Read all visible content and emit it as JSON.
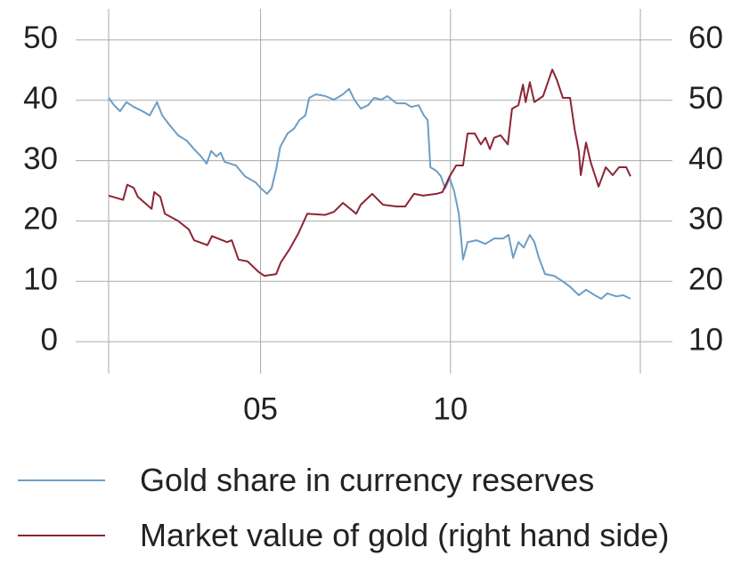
{
  "chart_data": {
    "type": "line",
    "xlim": [
      2001,
      2015
    ],
    "xticks": [
      {
        "value": 2005,
        "label": "05"
      },
      {
        "value": 2010,
        "label": "10"
      }
    ],
    "ylim": [
      -5,
      55
    ],
    "yticks": [
      0,
      10,
      20,
      30,
      40,
      50
    ],
    "y2lim": [
      5,
      65
    ],
    "y2ticks": [
      10,
      20,
      30,
      40,
      50,
      60
    ],
    "grid": true,
    "series": [
      {
        "name": "Gold share in currency reserves",
        "color": "#6d9dc5",
        "x": [
          2001.0,
          2001.14,
          2001.3,
          2001.47,
          2001.66,
          2001.89,
          2002.08,
          2002.27,
          2002.41,
          2002.59,
          2002.83,
          2003.06,
          2003.25,
          2003.42,
          2003.58,
          2003.7,
          2003.84,
          2003.95,
          2004.05,
          2004.35,
          2004.59,
          2004.87,
          2005.01,
          2005.17,
          2005.29,
          2005.41,
          2005.52,
          2005.71,
          2005.88,
          2006.02,
          2006.18,
          2006.28,
          2006.46,
          2006.7,
          2006.93,
          2007.17,
          2007.33,
          2007.47,
          2007.64,
          2007.83,
          2007.99,
          2008.18,
          2008.34,
          2008.58,
          2008.81,
          2008.97,
          2009.16,
          2009.3,
          2009.4,
          2009.47,
          2009.63,
          2009.75,
          2009.86,
          2009.98,
          2010.1,
          2010.22,
          2010.33,
          2010.45,
          2010.69,
          2010.92,
          2011.15,
          2011.39,
          2011.53,
          2011.65,
          2011.79,
          2011.93,
          2012.09,
          2012.21,
          2012.33,
          2012.49,
          2012.73,
          2012.96,
          2013.15,
          2013.38,
          2013.57,
          2013.8,
          2013.97,
          2014.13,
          2014.37,
          2014.55,
          2014.74
        ],
        "values": [
          40.4,
          39.2,
          38.2,
          39.7,
          38.9,
          38.2,
          37.5,
          39.7,
          37.5,
          36,
          34.2,
          33.3,
          31.9,
          30.8,
          29.5,
          31.6,
          30.7,
          31.3,
          29.8,
          29.2,
          27.4,
          26.4,
          25.4,
          24.5,
          25.4,
          28.6,
          32.3,
          34.5,
          35.3,
          36.7,
          37.5,
          40.4,
          41,
          40.7,
          40.1,
          41,
          41.9,
          40.1,
          38.6,
          39.2,
          40.4,
          40.1,
          40.7,
          39.5,
          39.5,
          38.9,
          39.2,
          37.5,
          36.7,
          28.9,
          28.3,
          27.4,
          25.4,
          27.1,
          24.9,
          21.2,
          13.6,
          16.5,
          16.8,
          16.2,
          17.1,
          17.1,
          17.7,
          13.9,
          16.5,
          15.6,
          17.7,
          16.5,
          13.9,
          11.2,
          10.9,
          10,
          9.1,
          7.7,
          8.6,
          7.7,
          7.1,
          8,
          7.5,
          7.7,
          7.1
        ]
      },
      {
        "name": "Market value of gold (right hand side)",
        "color": "#8c2535",
        "axis": "y2",
        "x": [
          2001.0,
          2001.38,
          2001.49,
          2001.66,
          2001.77,
          2002.13,
          2002.2,
          2002.36,
          2002.48,
          2002.83,
          2003.11,
          2003.25,
          2003.6,
          2003.72,
          2004.12,
          2004.24,
          2004.42,
          2004.66,
          2004.94,
          2005.1,
          2005.41,
          2005.53,
          2005.76,
          2006.0,
          2006.23,
          2006.7,
          2006.93,
          2007.17,
          2007.52,
          2007.64,
          2007.94,
          2008.22,
          2008.58,
          2008.81,
          2009.04,
          2009.28,
          2009.63,
          2009.79,
          2009.98,
          2010.15,
          2010.33,
          2010.45,
          2010.64,
          2010.8,
          2010.92,
          2011.04,
          2011.15,
          2011.32,
          2011.51,
          2011.62,
          2011.79,
          2011.91,
          2011.98,
          2012.09,
          2012.21,
          2012.44,
          2012.68,
          2012.8,
          2012.96,
          2013.15,
          2013.27,
          2013.38,
          2013.43,
          2013.57,
          2013.69,
          2013.9,
          2014.09,
          2014.27,
          2014.44,
          2014.63,
          2014.74
        ],
        "values": [
          34.2,
          33.5,
          36,
          35.5,
          34,
          32,
          34.8,
          34,
          31.2,
          30,
          28.6,
          26.8,
          26,
          27.5,
          26.5,
          26.8,
          23.6,
          23.3,
          21.6,
          20.9,
          21.2,
          23.1,
          25.3,
          28,
          31.2,
          31,
          31.5,
          33,
          31.2,
          32.7,
          34.5,
          32.7,
          32.4,
          32.4,
          34.5,
          34.2,
          34.5,
          34.8,
          37.4,
          39.2,
          39.2,
          44.5,
          44.5,
          42.7,
          43.8,
          41.9,
          43.8,
          44.2,
          42.7,
          48.6,
          49.2,
          52.6,
          49.7,
          53,
          49.7,
          50.7,
          55.1,
          53.4,
          50.4,
          50.4,
          45.2,
          41.6,
          37.6,
          43,
          39.8,
          35.7,
          38.9,
          37.6,
          38.9,
          38.9,
          37.4
        ]
      }
    ]
  }
}
